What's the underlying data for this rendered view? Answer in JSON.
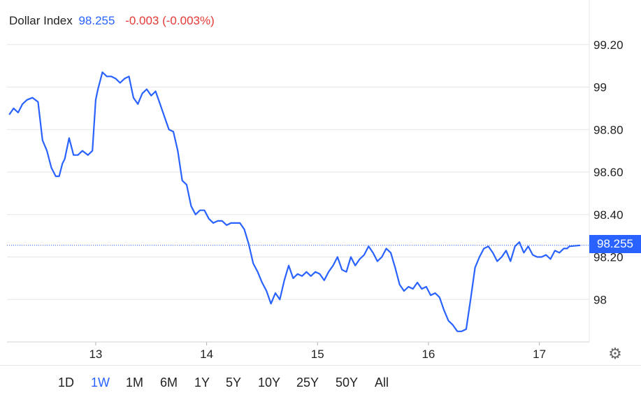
{
  "header": {
    "name": "Dollar Index",
    "value": "98.255",
    "change": "-0.003 (-0.003%)"
  },
  "price_tag": "98.255",
  "ranges": {
    "items": [
      "1D",
      "1W",
      "1M",
      "6M",
      "1Y",
      "5Y",
      "10Y",
      "25Y",
      "50Y",
      "All"
    ],
    "active": "1W"
  },
  "colors": {
    "line": "#2962ff",
    "change_negative": "#e53935",
    "grid": "#e6e6e6"
  },
  "icons": {
    "settings": "gear-icon"
  },
  "chart_data": {
    "type": "line",
    "series": [
      {
        "x": [
          12.22,
          12.26,
          12.3,
          12.34,
          12.38,
          12.43,
          12.48,
          12.52,
          12.56,
          12.6,
          12.64,
          12.67,
          12.7,
          12.72,
          12.76,
          12.8,
          12.84,
          12.88,
          12.93,
          12.97,
          13.0,
          13.02,
          13.06,
          13.1,
          13.14,
          13.18,
          13.22,
          13.26,
          13.3,
          13.34,
          13.38,
          13.42,
          13.46,
          13.5,
          13.54,
          13.58,
          13.62,
          13.66,
          13.7,
          13.74,
          13.78,
          13.82,
          13.86,
          13.9,
          13.94,
          13.98,
          14.02,
          14.06,
          14.1,
          14.14,
          14.18,
          14.22,
          14.26,
          14.3,
          14.34,
          14.38,
          14.42,
          14.46,
          14.5,
          14.54,
          14.58,
          14.62,
          14.66,
          14.7,
          14.74,
          14.78,
          14.82,
          14.86,
          14.9,
          14.94,
          14.98,
          15.02,
          15.06,
          15.1,
          15.14,
          15.18,
          15.22,
          15.26,
          15.3,
          15.34,
          15.38,
          15.42,
          15.46,
          15.5,
          15.54,
          15.58,
          15.62,
          15.66,
          15.7,
          15.74,
          15.78,
          15.82,
          15.86,
          15.9,
          15.94,
          15.98,
          16.02,
          16.06,
          16.1,
          16.14,
          16.18,
          16.22,
          16.26,
          16.3,
          16.34,
          16.38,
          16.42,
          16.46,
          16.5,
          16.54,
          16.58,
          16.62,
          16.66,
          16.7,
          16.74,
          16.78,
          16.82,
          16.86,
          16.9,
          16.94,
          16.98,
          17.02,
          17.06,
          17.1,
          17.14,
          17.18,
          17.22,
          17.25,
          17.27,
          17.37
        ],
        "values": [
          98.87,
          98.9,
          98.88,
          98.92,
          98.94,
          98.95,
          98.93,
          98.75,
          98.7,
          98.62,
          98.58,
          98.58,
          98.64,
          98.66,
          98.76,
          98.68,
          98.68,
          98.7,
          98.68,
          98.7,
          98.94,
          98.99,
          99.07,
          99.05,
          99.05,
          99.04,
          99.02,
          99.04,
          99.05,
          98.95,
          98.92,
          98.97,
          98.99,
          98.96,
          98.98,
          98.92,
          98.86,
          98.8,
          98.79,
          98.7,
          98.56,
          98.54,
          98.44,
          98.4,
          98.42,
          98.42,
          98.38,
          98.36,
          98.37,
          98.37,
          98.35,
          98.36,
          98.36,
          98.36,
          98.33,
          98.26,
          98.17,
          98.13,
          98.08,
          98.04,
          97.98,
          98.03,
          98.0,
          98.09,
          98.16,
          98.1,
          98.12,
          98.11,
          98.13,
          98.11,
          98.13,
          98.12,
          98.09,
          98.13,
          98.16,
          98.2,
          98.14,
          98.13,
          98.2,
          98.16,
          98.19,
          98.21,
          98.25,
          98.22,
          98.18,
          98.2,
          98.24,
          98.22,
          98.15,
          98.07,
          98.04,
          98.06,
          98.05,
          98.08,
          98.05,
          98.06,
          98.02,
          98.03,
          98.01,
          97.95,
          97.9,
          97.88,
          97.85,
          97.85,
          97.86,
          98.0,
          98.15,
          98.2,
          98.24,
          98.25,
          98.22,
          98.18,
          98.2,
          98.23,
          98.18,
          98.25,
          98.27,
          98.22,
          98.25,
          98.21,
          98.2,
          98.2,
          98.21,
          98.19,
          98.23,
          98.22,
          98.24,
          98.24,
          98.25,
          98.255
        ]
      }
    ],
    "x_ticks": [
      13,
      14,
      15,
      16,
      17
    ],
    "x_tick_labels": [
      "13",
      "14",
      "15",
      "16",
      "17"
    ],
    "y_ticks": [
      98,
      98.2,
      98.4,
      98.6,
      98.8,
      99,
      99.2
    ],
    "y_tick_labels": [
      "98",
      "98.20",
      "98.40",
      "98.60",
      "98.80",
      "99",
      "99.20"
    ],
    "xlim": [
      12.2,
      17.45
    ],
    "ylim": [
      97.8,
      99.41
    ],
    "last_value": 98.255,
    "grid": "horizontal",
    "title": "",
    "xlabel": "",
    "ylabel": ""
  }
}
